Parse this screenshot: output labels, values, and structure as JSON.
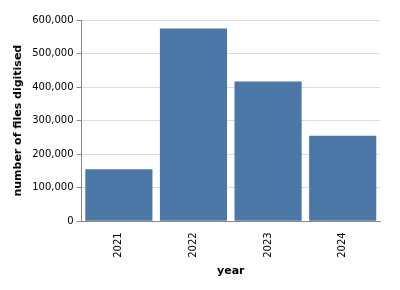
{
  "chart_data": {
    "type": "bar",
    "x_label": "year",
    "y_label": "number of files digitised",
    "categories": [
      "2021",
      "2022",
      "2023",
      "2024"
    ],
    "values": [
      155000,
      575000,
      417000,
      255000
    ],
    "color": "#4c78a8",
    "ylim": [
      0,
      600000
    ],
    "yticks": [
      0,
      {
        "value": 100000,
        "label": "100,000"
      },
      {
        "value": 200000,
        "label": "200,000"
      },
      {
        "value": 300000,
        "label": "300,000"
      },
      {
        "value": 400000,
        "label": "400,000"
      },
      {
        "value": 500000,
        "label": "500,000"
      },
      {
        "value": 600000,
        "label": "600,000"
      }
    ],
    "grid": true
  }
}
